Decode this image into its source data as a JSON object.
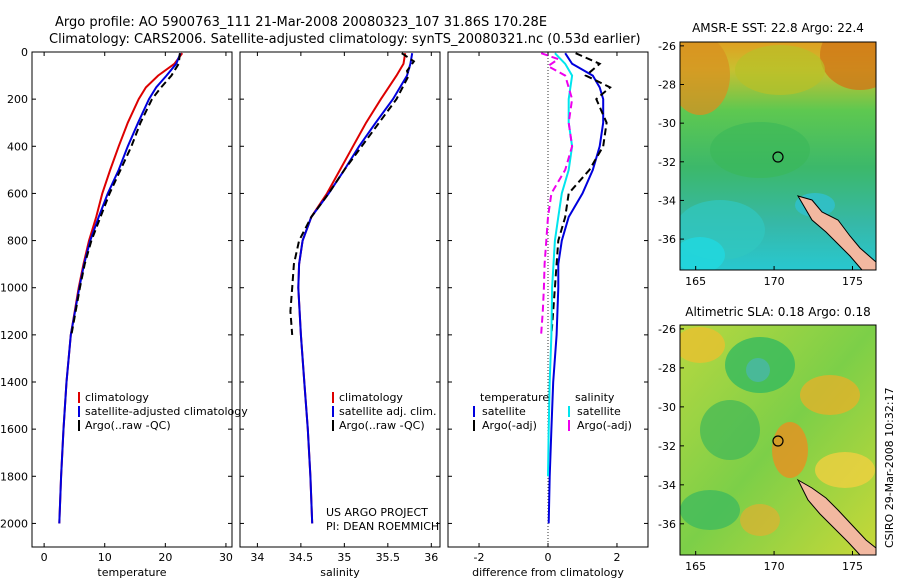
{
  "header": {
    "line1": "Argo profile: AO 5900763_111 21-Mar-2008 20080323_107 31.86S 170.28E",
    "line2": "Climatology: CARS2006. Satellite-adjusted climatology: synTS_20080321.nc (0.53d earlier)"
  },
  "colors": {
    "red": "#dd0000",
    "blue": "#0000dd",
    "black": "#000000",
    "cyan": "#00e5ee",
    "magenta": "#ee00ee",
    "land": "#f2b8a0"
  },
  "chart_data": [
    {
      "type": "line",
      "id": "temperature",
      "xlabel": "temperature",
      "ylabel": "",
      "xlim": [
        -2,
        31
      ],
      "ylim": [
        2100,
        0
      ],
      "xticks": [
        0,
        10,
        20,
        30
      ],
      "yticks": [
        0,
        200,
        400,
        600,
        800,
        1000,
        1200,
        1400,
        1600,
        1800,
        2000
      ],
      "legend": [
        "climatology",
        "satellite-adjusted climatology",
        "Argo(..raw -QC)"
      ],
      "series": [
        {
          "name": "climatology",
          "color": "red",
          "style": "solid",
          "depth": [
            5,
            50,
            100,
            150,
            200,
            300,
            400,
            500,
            600,
            700,
            800,
            900,
            1000,
            1200,
            1400,
            1600,
            1800,
            2000
          ],
          "x": [
            22.8,
            21.5,
            18.8,
            16.8,
            15.6,
            13.8,
            12.3,
            10.9,
            9.6,
            8.6,
            7.4,
            6.5,
            5.7,
            4.4,
            3.7,
            3.2,
            2.8,
            2.5
          ]
        },
        {
          "name": "satellite-adjusted climatology",
          "color": "blue",
          "style": "solid",
          "depth": [
            5,
            50,
            100,
            150,
            200,
            300,
            400,
            500,
            600,
            700,
            800,
            900,
            1000,
            1200,
            1400,
            1600,
            1800,
            2000
          ],
          "x": [
            22.5,
            21.8,
            20.2,
            18.5,
            17.3,
            15.5,
            13.8,
            12.3,
            10.5,
            9.0,
            7.6,
            6.6,
            5.8,
            4.4,
            3.7,
            3.2,
            2.8,
            2.5
          ]
        },
        {
          "name": "Argo(..raw -QC)",
          "color": "black",
          "style": "dashed",
          "depth": [
            5,
            50,
            100,
            150,
            200,
            300,
            400,
            500,
            600,
            700,
            800,
            900,
            1000,
            1200
          ],
          "x": [
            22.4,
            22.2,
            21.0,
            19.3,
            17.8,
            15.9,
            14.4,
            12.6,
            10.8,
            9.3,
            7.8,
            6.7,
            5.9,
            4.5
          ]
        }
      ]
    },
    {
      "type": "line",
      "id": "salinity",
      "xlabel": "salinity",
      "ylabel": "",
      "xlim": [
        33.8,
        36.1
      ],
      "ylim": [
        2100,
        0
      ],
      "xticks": [
        34,
        34.5,
        35,
        35.5,
        36
      ],
      "yticks": [
        0,
        200,
        400,
        600,
        800,
        1000,
        1200,
        1400,
        1600,
        1800,
        2000
      ],
      "legend": [
        "climatology",
        "satellite adj. clim.",
        "Argo(..raw -QC)"
      ],
      "series": [
        {
          "name": "climatology",
          "color": "red",
          "style": "solid",
          "depth": [
            5,
            50,
            100,
            200,
            300,
            400,
            500,
            600,
            700,
            800,
            900,
            1000,
            1200,
            1400,
            1600,
            1800,
            2000
          ],
          "x": [
            35.7,
            35.68,
            35.6,
            35.42,
            35.25,
            35.1,
            34.95,
            34.8,
            34.62,
            34.52,
            34.48,
            34.47,
            34.5,
            34.54,
            34.58,
            34.61,
            34.63
          ]
        },
        {
          "name": "satellite adj. clim.",
          "color": "blue",
          "style": "solid",
          "depth": [
            5,
            50,
            100,
            200,
            300,
            400,
            500,
            600,
            700,
            800,
            900,
            1000,
            1200,
            1400,
            1600,
            1800,
            2000
          ],
          "x": [
            35.78,
            35.76,
            35.72,
            35.56,
            35.36,
            35.17,
            35.0,
            34.82,
            34.62,
            34.52,
            34.48,
            34.47,
            34.5,
            34.54,
            34.58,
            34.61,
            34.63
          ]
        },
        {
          "name": "Argo(..raw -QC)",
          "color": "black",
          "style": "dashed",
          "depth": [
            5,
            40,
            80,
            100,
            200,
            300,
            400,
            500,
            600,
            700,
            800,
            900,
            1000,
            1100,
            1200
          ],
          "x": [
            35.66,
            35.8,
            35.72,
            35.74,
            35.6,
            35.4,
            35.2,
            35.0,
            34.82,
            34.62,
            34.48,
            34.42,
            34.4,
            34.38,
            34.4
          ]
        }
      ]
    },
    {
      "type": "line",
      "id": "difference",
      "xlabel": "difference from climatology",
      "ylabel": "",
      "xlim": [
        -2.9,
        2.9
      ],
      "ylim": [
        2100,
        0
      ],
      "xticks": [
        -2,
        0,
        2
      ],
      "yticks": [
        0,
        200,
        400,
        600,
        800,
        1000,
        1200,
        1400,
        1600,
        1800,
        2000
      ],
      "legend_groups": [
        {
          "heading": "temperature",
          "items": [
            "satellite",
            "Argo(-adj)"
          ]
        },
        {
          "heading": "salinity",
          "items": [
            "satellite",
            "Argo(-adj)"
          ]
        }
      ],
      "series": [
        {
          "name": "temperature satellite",
          "color": "blue",
          "style": "solid",
          "depth": [
            5,
            50,
            100,
            150,
            200,
            300,
            400,
            500,
            600,
            700,
            800,
            900,
            1000,
            1200,
            1400,
            1600,
            1800,
            2000
          ],
          "x": [
            0.5,
            0.7,
            1.3,
            1.5,
            1.6,
            1.6,
            1.5,
            1.3,
            1.0,
            0.6,
            0.4,
            0.3,
            0.3,
            0.25,
            0.15,
            0.1,
            0.05,
            0.02
          ]
        },
        {
          "name": "temperature Argo(-adj)",
          "color": "black",
          "style": "dashed",
          "depth": [
            5,
            50,
            100,
            150,
            200,
            300,
            400,
            500,
            600,
            700,
            800,
            900,
            1000,
            1100,
            1200
          ],
          "x": [
            0.8,
            1.5,
            1.1,
            1.8,
            1.4,
            1.7,
            1.6,
            1.2,
            0.6,
            0.5,
            0.3,
            0.25,
            0.2,
            0.15,
            0.1
          ]
        },
        {
          "name": "salinity satellite",
          "color": "cyan",
          "style": "solid",
          "depth": [
            5,
            50,
            100,
            200,
            300,
            400,
            500,
            600,
            700,
            800,
            1000,
            1200,
            1400,
            1600,
            1800
          ],
          "x": [
            0.2,
            0.5,
            0.7,
            0.6,
            0.6,
            0.7,
            0.6,
            0.4,
            0.3,
            0.2,
            0.12,
            0.1,
            0.05,
            0.02,
            0.0
          ]
        },
        {
          "name": "salinity Argo(-adj)",
          "color": "magenta",
          "style": "dashed",
          "depth": [
            5,
            30,
            60,
            100,
            200,
            300,
            400,
            500,
            600,
            700,
            800,
            900,
            1000,
            1100,
            1200
          ],
          "x": [
            -0.2,
            0.3,
            0.0,
            0.5,
            0.7,
            0.6,
            0.7,
            0.5,
            0.1,
            0.0,
            -0.05,
            -0.1,
            -0.12,
            -0.15,
            -0.2
          ]
        }
      ]
    },
    {
      "type": "heatmap",
      "id": "sst_map",
      "title": "AMSR-E SST: 22.8 Argo: 22.4",
      "xlim": [
        164,
        176.5
      ],
      "ylim": [
        -37.6,
        -25.8
      ],
      "xticks": [
        165,
        170,
        175
      ],
      "yticks": [
        -26,
        -28,
        -30,
        -32,
        -34,
        -36
      ],
      "argo_marker": {
        "lon": 170.28,
        "lat": -31.86
      }
    },
    {
      "type": "heatmap",
      "id": "sla_map",
      "title": "Altimetric SLA: 0.18 Argo: 0.18",
      "xlim": [
        164,
        176.5
      ],
      "ylim": [
        -37.6,
        -25.8
      ],
      "xticks": [
        165,
        170,
        175
      ],
      "yticks": [
        -26,
        -28,
        -30,
        -32,
        -34,
        -36
      ],
      "argo_marker": {
        "lon": 170.28,
        "lat": -31.86
      }
    }
  ],
  "credits": {
    "project": "US ARGO PROJECT",
    "pi": "PI: DEAN ROEMMICH"
  },
  "stamp": "CSIRO 29-Mar-2008 10:32:17"
}
